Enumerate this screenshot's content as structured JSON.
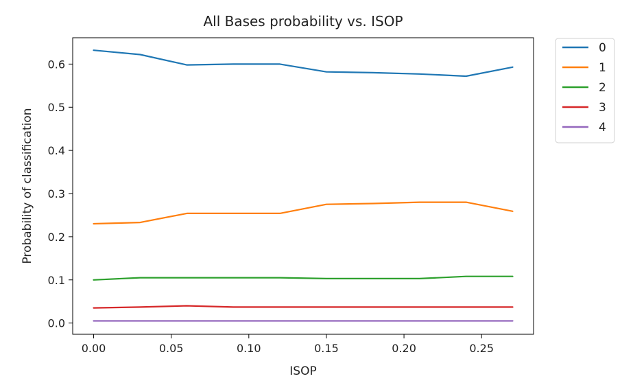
{
  "chart_data": {
    "type": "line",
    "title": "All Bases probability vs. ISOP",
    "xlabel": "ISOP",
    "ylabel": "Probability of classification",
    "xlim": [
      -0.0135,
      0.2835
    ],
    "ylim": [
      -0.026,
      0.661
    ],
    "xticks": [
      0.0,
      0.05,
      0.1,
      0.15,
      0.2,
      0.25
    ],
    "xtick_labels": [
      "0.00",
      "0.05",
      "0.10",
      "0.15",
      "0.20",
      "0.25"
    ],
    "yticks": [
      0.0,
      0.1,
      0.2,
      0.3,
      0.4,
      0.5,
      0.6
    ],
    "ytick_labels": [
      "0.0",
      "0.1",
      "0.2",
      "0.3",
      "0.4",
      "0.5",
      "0.6"
    ],
    "grid": false,
    "legend_position": "outside-top-right",
    "x": [
      0.0,
      0.03,
      0.06,
      0.09,
      0.12,
      0.15,
      0.18,
      0.21,
      0.24,
      0.27
    ],
    "series": [
      {
        "name": "0",
        "color": "#1f77b4",
        "values": [
          0.632,
          0.622,
          0.598,
          0.6,
          0.6,
          0.582,
          0.58,
          0.577,
          0.572,
          0.593
        ]
      },
      {
        "name": "1",
        "color": "#ff7f0e",
        "values": [
          0.23,
          0.233,
          0.254,
          0.254,
          0.254,
          0.275,
          0.277,
          0.28,
          0.28,
          0.259
        ]
      },
      {
        "name": "2",
        "color": "#2ca02c",
        "values": [
          0.1,
          0.105,
          0.105,
          0.105,
          0.105,
          0.103,
          0.103,
          0.103,
          0.108,
          0.108
        ]
      },
      {
        "name": "3",
        "color": "#d62728",
        "values": [
          0.035,
          0.037,
          0.04,
          0.037,
          0.037,
          0.037,
          0.037,
          0.037,
          0.037,
          0.037
        ]
      },
      {
        "name": "4",
        "color": "#9467bd",
        "values": [
          0.005,
          0.005,
          0.005,
          0.005,
          0.005,
          0.005,
          0.005,
          0.005,
          0.005,
          0.005
        ]
      }
    ]
  }
}
